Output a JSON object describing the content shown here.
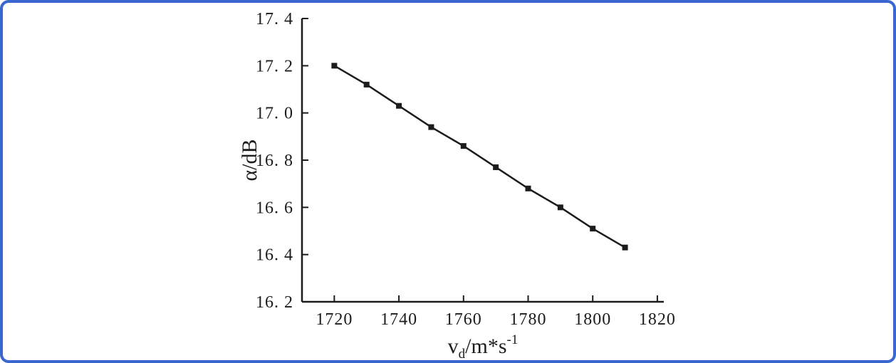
{
  "frame": {
    "border_color": "#3a67cf",
    "background": "#ffffff"
  },
  "chart_data": {
    "type": "line",
    "title": "",
    "x": [
      1720,
      1730,
      1740,
      1750,
      1760,
      1770,
      1780,
      1790,
      1800,
      1810
    ],
    "y": [
      17.2,
      17.12,
      17.03,
      16.94,
      16.86,
      16.77,
      16.68,
      16.6,
      16.51,
      16.43
    ],
    "xlabel": {
      "var": "v",
      "sub": "d",
      "unit": "/m*s",
      "sup": "-1",
      "plain": "v_d/m*s^-1"
    },
    "ylabel": "α/dB",
    "xlim": [
      1710,
      1822
    ],
    "ylim": [
      16.2,
      17.4
    ],
    "xticks": [
      1720,
      1740,
      1760,
      1780,
      1800,
      1820
    ],
    "xtick_labels": [
      "1720",
      "1740",
      "1760",
      "1780",
      "1800",
      "1820"
    ],
    "yticks": [
      16.2,
      16.4,
      16.6,
      16.8,
      17.0,
      17.2,
      17.4
    ],
    "ytick_labels": [
      "16. 2",
      "16. 4",
      "16. 6",
      "16. 8",
      "17. 0",
      "17. 2",
      "17. 4"
    ],
    "line_color": "#1c1c1c",
    "marker": "square",
    "marker_size": 8,
    "grid": false,
    "legend": "none"
  }
}
